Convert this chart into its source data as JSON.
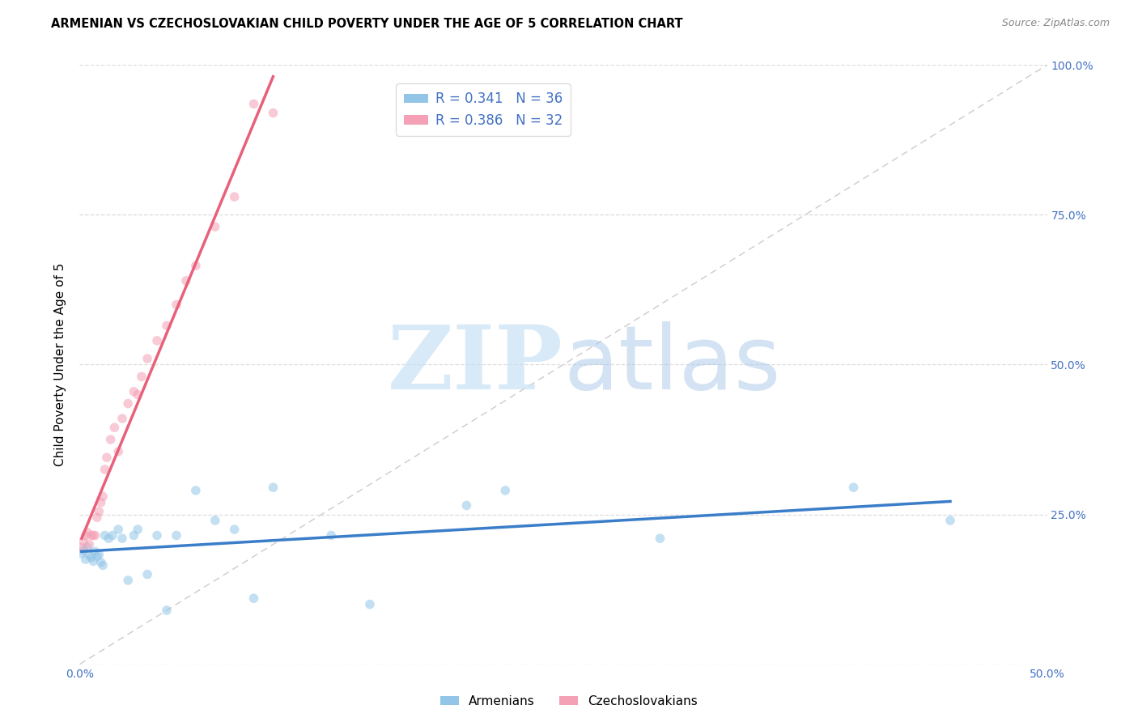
{
  "title": "ARMENIAN VS CZECHOSLOVAKIAN CHILD POVERTY UNDER THE AGE OF 5 CORRELATION CHART",
  "source": "Source: ZipAtlas.com",
  "ylabel": "Child Poverty Under the Age of 5",
  "xlim": [
    0,
    0.5
  ],
  "ylim": [
    0,
    1.0
  ],
  "xtick_positions": [
    0.0,
    0.1,
    0.2,
    0.3,
    0.4,
    0.5
  ],
  "ytick_positions": [
    0.0,
    0.25,
    0.5,
    0.75,
    1.0
  ],
  "armenian_color": "#92C5E8",
  "czech_color": "#F4A0B5",
  "armenian_line_color": "#3A7DC9",
  "czech_line_color": "#E8607A",
  "diag_line_color": "#CCCCCC",
  "tick_label_color": "#4472C4",
  "R_armenian": 0.341,
  "N_armenian": 36,
  "R_czech": 0.386,
  "N_czech": 32,
  "armenian_x": [
    0.001,
    0.002,
    0.003,
    0.004,
    0.005,
    0.006,
    0.007,
    0.008,
    0.009,
    0.01,
    0.011,
    0.012,
    0.013,
    0.015,
    0.017,
    0.02,
    0.022,
    0.025,
    0.028,
    0.03,
    0.035,
    0.04,
    0.045,
    0.05,
    0.06,
    0.07,
    0.08,
    0.09,
    0.1,
    0.13,
    0.15,
    0.2,
    0.22,
    0.3,
    0.4,
    0.45
  ],
  "armenian_y": [
    0.185,
    0.19,
    0.175,
    0.195,
    0.182,
    0.178,
    0.172,
    0.188,
    0.18,
    0.183,
    0.17,
    0.165,
    0.215,
    0.21,
    0.215,
    0.225,
    0.21,
    0.14,
    0.215,
    0.225,
    0.15,
    0.215,
    0.09,
    0.215,
    0.29,
    0.24,
    0.225,
    0.11,
    0.295,
    0.215,
    0.1,
    0.265,
    0.29,
    0.21,
    0.295,
    0.24
  ],
  "czech_x": [
    0.001,
    0.002,
    0.003,
    0.004,
    0.005,
    0.006,
    0.007,
    0.008,
    0.009,
    0.01,
    0.011,
    0.012,
    0.013,
    0.014,
    0.016,
    0.018,
    0.02,
    0.022,
    0.025,
    0.028,
    0.03,
    0.032,
    0.035,
    0.04,
    0.045,
    0.05,
    0.055,
    0.06,
    0.07,
    0.08,
    0.09,
    0.1
  ],
  "czech_y": [
    0.195,
    0.205,
    0.215,
    0.22,
    0.2,
    0.215,
    0.215,
    0.215,
    0.245,
    0.255,
    0.27,
    0.28,
    0.325,
    0.345,
    0.375,
    0.395,
    0.355,
    0.41,
    0.435,
    0.455,
    0.45,
    0.48,
    0.51,
    0.54,
    0.565,
    0.6,
    0.64,
    0.665,
    0.73,
    0.78,
    0.935,
    0.92
  ],
  "background_color": "#FFFFFF",
  "grid_color": "#DDDDDD",
  "marker_size": 70,
  "marker_alpha": 0.55
}
